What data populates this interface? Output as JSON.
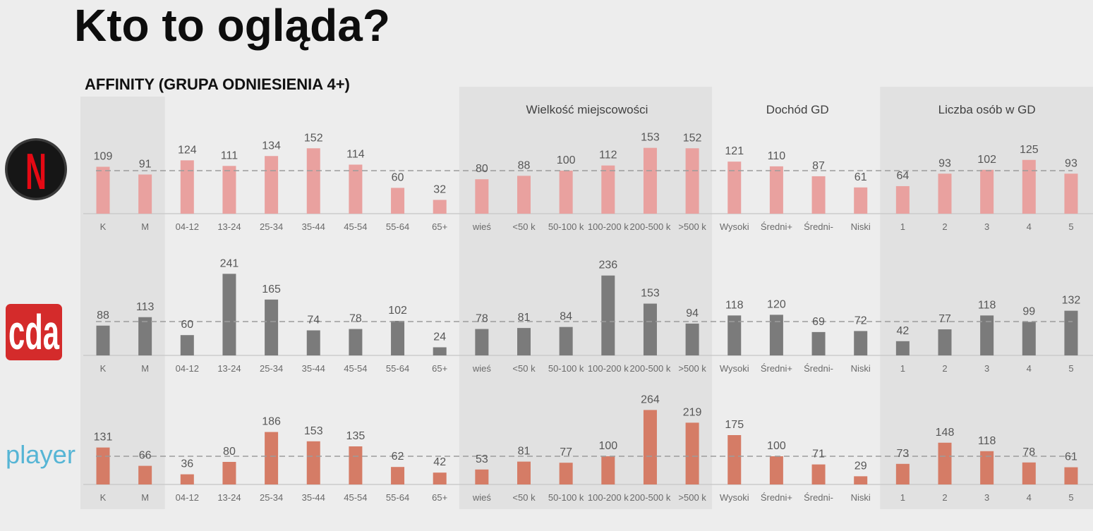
{
  "page": {
    "title": "Kto to ogląda?"
  },
  "colors": {
    "background": "#ededed",
    "panel": "#e1e1e1"
  },
  "chart_data": {
    "type": "bar",
    "title": "AFFINITY (GRUPA ODNIESIENIA 4+)",
    "reference_line": 100,
    "grid": false,
    "groups": [
      {
        "categories": [
          "K",
          "M"
        ],
        "shaded": true
      },
      {
        "categories": [
          "04-12",
          "13-24",
          "25-34",
          "35-44",
          "45-54",
          "55-64",
          "65+"
        ],
        "shaded": false
      },
      {
        "label": "Wielkość miejscowości",
        "categories": [
          "wieś",
          "<50 k",
          "50-100 k",
          "100-200 k",
          "200-500 k",
          ">500 k"
        ],
        "shaded": true
      },
      {
        "label": "Dochód GD",
        "categories": [
          "Wysoki",
          "Średni+",
          "Średni-",
          "Niski"
        ],
        "shaded": false
      },
      {
        "label": "Liczba osób w GD",
        "categories": [
          "1",
          "2",
          "3",
          "4",
          "5"
        ],
        "shaded": true
      }
    ],
    "series": [
      {
        "logo_icon": "netflix-logo",
        "logo_text": "N",
        "logo_color": "#e50914",
        "bar_color": "#e9a19f",
        "ylim": [
          0,
          200
        ],
        "values": [
          109,
          91,
          124,
          111,
          134,
          152,
          114,
          60,
          32,
          80,
          88,
          100,
          112,
          153,
          152,
          121,
          110,
          87,
          61,
          64,
          93,
          102,
          125,
          93
        ]
      },
      {
        "logo_icon": "cda-logo",
        "logo_text": "cda",
        "logo_color": "#d42b2b",
        "bar_color": "#7b7b7b",
        "ylim": [
          0,
          250
        ],
        "values": [
          88,
          113,
          60,
          241,
          165,
          74,
          78,
          102,
          24,
          78,
          81,
          84,
          236,
          153,
          94,
          118,
          120,
          69,
          72,
          42,
          77,
          118,
          99,
          132
        ]
      },
      {
        "logo_icon": "player-logo",
        "logo_text": "player",
        "logo_color": "#56b5d5",
        "bar_color": "#d57c66",
        "ylim": [
          0,
          275
        ],
        "values": [
          131,
          66,
          36,
          80,
          186,
          153,
          135,
          62,
          42,
          53,
          81,
          77,
          100,
          264,
          219,
          175,
          100,
          71,
          29,
          73,
          148,
          118,
          78,
          61
        ]
      }
    ]
  }
}
